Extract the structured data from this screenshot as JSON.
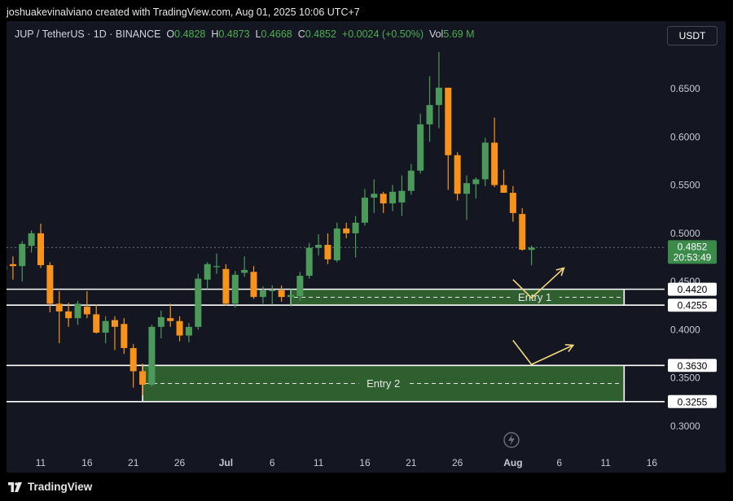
{
  "header": {
    "credit": "joshuakevinalviano created with TradingView.com, Aug 01, 2025 10:06 UTC+7"
  },
  "legend": {
    "symbol": "JUP / TetherUS · 1D · BINANCE",
    "open_label": "O",
    "open": "0.4828",
    "high_label": "H",
    "high": "0.4873",
    "low_label": "L",
    "low": "0.4668",
    "close_label": "C",
    "close": "0.4852",
    "change": "+0.0024 (+0.50%)",
    "vol_label": "Vol",
    "vol": "5.69 M"
  },
  "currency_button": "USDT",
  "footer": {
    "brand": "TradingView"
  },
  "colors": {
    "up": "#4c9a5a",
    "down": "#f7931a",
    "zone": "#2f5f2f",
    "background": "#141722"
  },
  "chart_data": {
    "type": "candlestick",
    "y_ticks": [
      "0.6500",
      "0.6000",
      "0.5500",
      "0.5000",
      "0.4500",
      "0.4000",
      "0.3500",
      "0.3000"
    ],
    "ylim": [
      0.285,
      0.695
    ],
    "x_ticks": [
      {
        "label": "11",
        "day": 10
      },
      {
        "label": "16",
        "day": 15
      },
      {
        "label": "21",
        "day": 20
      },
      {
        "label": "26",
        "day": 25
      },
      {
        "label": "Jul",
        "day": 30
      },
      {
        "label": "6",
        "day": 35
      },
      {
        "label": "11",
        "day": 40
      },
      {
        "label": "16",
        "day": 45
      },
      {
        "label": "21",
        "day": 50
      },
      {
        "label": "26",
        "day": 55
      },
      {
        "label": "Aug",
        "day": 61
      },
      {
        "label": "6",
        "day": 66
      },
      {
        "label": "11",
        "day": 71
      },
      {
        "label": "16",
        "day": 76
      }
    ],
    "candles": [
      {
        "day": 6,
        "o": 0.462,
        "h": 0.468,
        "l": 0.448,
        "c": 0.466
      },
      {
        "day": 7,
        "o": 0.468,
        "h": 0.476,
        "l": 0.452,
        "c": 0.466
      },
      {
        "day": 8,
        "o": 0.466,
        "h": 0.492,
        "l": 0.45,
        "c": 0.489
      },
      {
        "day": 9,
        "o": 0.487,
        "h": 0.503,
        "l": 0.48,
        "c": 0.5
      },
      {
        "day": 10,
        "o": 0.5,
        "h": 0.51,
        "l": 0.464,
        "c": 0.467
      },
      {
        "day": 11,
        "o": 0.467,
        "h": 0.47,
        "l": 0.418,
        "c": 0.427
      },
      {
        "day": 12,
        "o": 0.427,
        "h": 0.44,
        "l": 0.386,
        "c": 0.419
      },
      {
        "day": 13,
        "o": 0.419,
        "h": 0.428,
        "l": 0.403,
        "c": 0.412
      },
      {
        "day": 14,
        "o": 0.412,
        "h": 0.43,
        "l": 0.405,
        "c": 0.427
      },
      {
        "day": 15,
        "o": 0.424,
        "h": 0.44,
        "l": 0.412,
        "c": 0.416
      },
      {
        "day": 16,
        "o": 0.416,
        "h": 0.426,
        "l": 0.396,
        "c": 0.397
      },
      {
        "day": 17,
        "o": 0.397,
        "h": 0.414,
        "l": 0.386,
        "c": 0.409
      },
      {
        "day": 18,
        "o": 0.41,
        "h": 0.414,
        "l": 0.379,
        "c": 0.403
      },
      {
        "day": 19,
        "o": 0.406,
        "h": 0.412,
        "l": 0.375,
        "c": 0.381
      },
      {
        "day": 20,
        "o": 0.381,
        "h": 0.385,
        "l": 0.34,
        "c": 0.357
      },
      {
        "day": 21,
        "o": 0.357,
        "h": 0.365,
        "l": 0.332,
        "c": 0.343
      },
      {
        "day": 22,
        "o": 0.343,
        "h": 0.405,
        "l": 0.341,
        "c": 0.403
      },
      {
        "day": 23,
        "o": 0.403,
        "h": 0.42,
        "l": 0.391,
        "c": 0.413
      },
      {
        "day": 24,
        "o": 0.412,
        "h": 0.427,
        "l": 0.403,
        "c": 0.409
      },
      {
        "day": 25,
        "o": 0.409,
        "h": 0.414,
        "l": 0.388,
        "c": 0.394
      },
      {
        "day": 26,
        "o": 0.394,
        "h": 0.407,
        "l": 0.387,
        "c": 0.403
      },
      {
        "day": 27,
        "o": 0.403,
        "h": 0.458,
        "l": 0.4,
        "c": 0.453
      },
      {
        "day": 28,
        "o": 0.452,
        "h": 0.47,
        "l": 0.442,
        "c": 0.468
      },
      {
        "day": 29,
        "o": 0.466,
        "h": 0.479,
        "l": 0.458,
        "c": 0.466
      },
      {
        "day": 30,
        "o": 0.463,
        "h": 0.468,
        "l": 0.425,
        "c": 0.427
      },
      {
        "day": 31,
        "o": 0.427,
        "h": 0.461,
        "l": 0.423,
        "c": 0.457
      },
      {
        "day": 32,
        "o": 0.459,
        "h": 0.476,
        "l": 0.455,
        "c": 0.462
      },
      {
        "day": 33,
        "o": 0.46,
        "h": 0.466,
        "l": 0.432,
        "c": 0.434
      },
      {
        "day": 34,
        "o": 0.434,
        "h": 0.445,
        "l": 0.427,
        "c": 0.441
      },
      {
        "day": 35,
        "o": 0.44,
        "h": 0.446,
        "l": 0.426,
        "c": 0.441
      },
      {
        "day": 36,
        "o": 0.441,
        "h": 0.446,
        "l": 0.429,
        "c": 0.434
      },
      {
        "day": 37,
        "o": 0.434,
        "h": 0.443,
        "l": 0.424,
        "c": 0.436
      },
      {
        "day": 38,
        "o": 0.435,
        "h": 0.46,
        "l": 0.43,
        "c": 0.456
      },
      {
        "day": 39,
        "o": 0.456,
        "h": 0.49,
        "l": 0.453,
        "c": 0.485
      },
      {
        "day": 40,
        "o": 0.485,
        "h": 0.499,
        "l": 0.477,
        "c": 0.488
      },
      {
        "day": 41,
        "o": 0.488,
        "h": 0.5,
        "l": 0.468,
        "c": 0.473
      },
      {
        "day": 42,
        "o": 0.472,
        "h": 0.511,
        "l": 0.47,
        "c": 0.505
      },
      {
        "day": 43,
        "o": 0.505,
        "h": 0.511,
        "l": 0.495,
        "c": 0.5
      },
      {
        "day": 44,
        "o": 0.5,
        "h": 0.518,
        "l": 0.475,
        "c": 0.511
      },
      {
        "day": 45,
        "o": 0.511,
        "h": 0.546,
        "l": 0.508,
        "c": 0.537
      },
      {
        "day": 46,
        "o": 0.537,
        "h": 0.556,
        "l": 0.521,
        "c": 0.541
      },
      {
        "day": 47,
        "o": 0.541,
        "h": 0.543,
        "l": 0.521,
        "c": 0.531
      },
      {
        "day": 48,
        "o": 0.531,
        "h": 0.55,
        "l": 0.523,
        "c": 0.543
      },
      {
        "day": 49,
        "o": 0.532,
        "h": 0.56,
        "l": 0.518,
        "c": 0.544
      },
      {
        "day": 50,
        "o": 0.544,
        "h": 0.572,
        "l": 0.54,
        "c": 0.565
      },
      {
        "day": 51,
        "o": 0.565,
        "h": 0.624,
        "l": 0.562,
        "c": 0.613
      },
      {
        "day": 52,
        "o": 0.613,
        "h": 0.663,
        "l": 0.595,
        "c": 0.633
      },
      {
        "day": 53,
        "o": 0.633,
        "h": 0.688,
        "l": 0.609,
        "c": 0.651
      },
      {
        "day": 54,
        "o": 0.651,
        "h": 0.651,
        "l": 0.545,
        "c": 0.581
      },
      {
        "day": 55,
        "o": 0.581,
        "h": 0.584,
        "l": 0.534,
        "c": 0.541
      },
      {
        "day": 56,
        "o": 0.541,
        "h": 0.56,
        "l": 0.514,
        "c": 0.552
      },
      {
        "day": 57,
        "o": 0.551,
        "h": 0.558,
        "l": 0.536,
        "c": 0.556
      },
      {
        "day": 58,
        "o": 0.556,
        "h": 0.599,
        "l": 0.549,
        "c": 0.594
      },
      {
        "day": 59,
        "o": 0.594,
        "h": 0.62,
        "l": 0.548,
        "c": 0.55
      },
      {
        "day": 60,
        "o": 0.55,
        "h": 0.566,
        "l": 0.544,
        "c": 0.542
      },
      {
        "day": 61,
        "o": 0.542,
        "h": 0.549,
        "l": 0.512,
        "c": 0.521
      },
      {
        "day": 62,
        "o": 0.52,
        "h": 0.526,
        "l": 0.482,
        "c": 0.483
      },
      {
        "day": 63,
        "o": 0.4828,
        "h": 0.4873,
        "l": 0.4668,
        "c": 0.4852
      }
    ],
    "current_price": {
      "price": "0.4852",
      "countdown": "20:53:49",
      "value": 0.4852
    },
    "zones": [
      {
        "label": "Entry 1",
        "top_label": "0.4420",
        "bottom_label": "0.4255",
        "top": 0.442,
        "bottom": 0.4255,
        "mid": 0.4337,
        "start_day": 37,
        "end_day": 73
      },
      {
        "label": "Entry 2",
        "top_label": "0.3630",
        "bottom_label": "0.3255",
        "top": 0.363,
        "bottom": 0.3255,
        "mid": 0.3443,
        "start_day": 21,
        "end_day": 73
      }
    ],
    "arrows": [
      {
        "points": [
          [
            61.0,
            0.452
          ],
          [
            63.0,
            0.433
          ],
          [
            66.5,
            0.464
          ]
        ]
      },
      {
        "points": [
          [
            61.0,
            0.389
          ],
          [
            63.0,
            0.364
          ],
          [
            67.5,
            0.384
          ]
        ]
      }
    ]
  }
}
